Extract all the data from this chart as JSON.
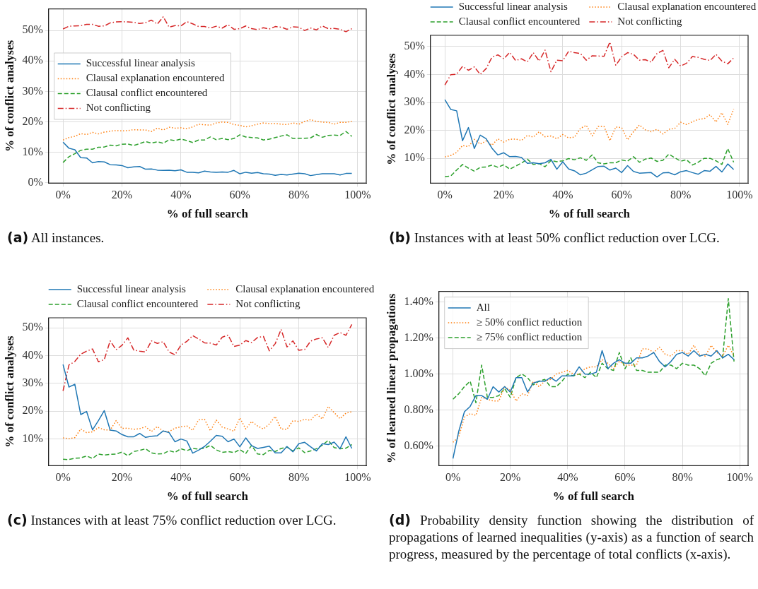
{
  "chart_data": [
    {
      "type": "line",
      "xlabel": "% of full search",
      "ylabel": "% of conflict analyses",
      "legend": "center left",
      "grid": true,
      "x": [
        0,
        2,
        4,
        6,
        8,
        10,
        12,
        14,
        16,
        18,
        20,
        22,
        24,
        26,
        28,
        30,
        32,
        34,
        36,
        38,
        40,
        42,
        44,
        46,
        48,
        50,
        52,
        54,
        56,
        58,
        60,
        62,
        64,
        66,
        68,
        70,
        72,
        74,
        76,
        78,
        80,
        82,
        84,
        86,
        88,
        90,
        92,
        94,
        96,
        98
      ],
      "xlim": [
        -4.9,
        102.9
      ],
      "ylim": [
        -0.2,
        57.1
      ],
      "xticks": [
        {
          "value": 0,
          "label": "0%"
        },
        {
          "value": 20,
          "label": "20%"
        },
        {
          "value": 40,
          "label": "40%"
        },
        {
          "value": 60,
          "label": "60%"
        },
        {
          "value": 80,
          "label": "80%"
        },
        {
          "value": 100,
          "label": "100%"
        }
      ],
      "yticks": [
        {
          "value": 0,
          "label": "0%"
        },
        {
          "value": 10,
          "label": "10%"
        },
        {
          "value": 20,
          "label": "20%"
        },
        {
          "value": 30,
          "label": "30%"
        },
        {
          "value": 40,
          "label": "40%"
        },
        {
          "value": 50,
          "label": "50%"
        }
      ],
      "series": [
        {
          "name": "Successful linear analysis",
          "color": "#1f77b4",
          "line_style": "solid",
          "values": [
            13.3,
            11.3,
            10.8,
            8.2,
            8.1,
            6.5,
            6.9,
            6.8,
            5.9,
            5.8,
            5.6,
            4.9,
            5.2,
            5.3,
            4.4,
            4.5,
            4.1,
            4.0,
            4.1,
            3.9,
            4.2,
            3.4,
            3.4,
            3.2,
            3.8,
            3.5,
            3.4,
            3.5,
            3.4,
            4.0,
            2.9,
            3.4,
            3.1,
            3.3,
            2.9,
            2.8,
            2.4,
            2.7,
            2.5,
            2.8,
            3.1,
            2.9,
            2.3,
            2.6,
            2.9,
            2.9,
            2.9,
            2.5,
            3.0,
            3.0
          ]
        },
        {
          "name": "Clausal explanation encountered",
          "color": "#ff7f0e",
          "line_style": "dotted",
          "values": [
            14.0,
            14.8,
            15.2,
            16.1,
            15.8,
            16.5,
            16.0,
            16.6,
            16.9,
            17.1,
            17.0,
            17.1,
            17.4,
            17.3,
            17.3,
            16.8,
            17.9,
            17.3,
            18.2,
            17.9,
            18.0,
            17.7,
            18.3,
            19.2,
            19.0,
            18.9,
            19.6,
            19.9,
            19.8,
            19.1,
            18.8,
            18.3,
            18.7,
            19.2,
            19.6,
            19.4,
            19.4,
            19.2,
            19.1,
            19.6,
            19.2,
            20.1,
            20.7,
            20.1,
            19.9,
            19.8,
            19.2,
            19.8,
            19.8,
            20.1
          ]
        },
        {
          "name": "Clausal conflict encountered",
          "color": "#2ca02c",
          "line_style": "dashed",
          "values": [
            6.6,
            8.5,
            9.5,
            10.6,
            11.0,
            11.0,
            11.6,
            11.7,
            12.3,
            12.1,
            12.6,
            12.7,
            12.2,
            12.8,
            13.5,
            13.0,
            13.4,
            12.9,
            14.1,
            13.8,
            14.3,
            13.8,
            13.2,
            14.0,
            14.0,
            15.0,
            14.1,
            14.5,
            14.1,
            14.5,
            15.7,
            15.0,
            14.8,
            14.7,
            14.0,
            14.3,
            14.8,
            15.3,
            15.7,
            14.5,
            14.6,
            14.6,
            14.7,
            15.8,
            14.9,
            15.5,
            15.6,
            15.5,
            16.8,
            15.2
          ]
        },
        {
          "name": "Not conflicting",
          "color": "#d62728",
          "line_style": "dashdot",
          "values": [
            50.5,
            51.4,
            51.5,
            51.6,
            52.0,
            52.0,
            51.4,
            51.5,
            52.5,
            52.8,
            52.9,
            52.8,
            52.7,
            52.3,
            52.6,
            53.4,
            52.1,
            54.5,
            51.1,
            51.6,
            51.5,
            52.9,
            52.2,
            51.3,
            51.3,
            50.8,
            51.4,
            50.8,
            51.9,
            50.4,
            50.6,
            51.5,
            50.6,
            50.3,
            50.9,
            50.5,
            51.3,
            51.1,
            50.4,
            51.2,
            51.1,
            50.0,
            50.8,
            50.2,
            51.5,
            50.6,
            50.7,
            50.4,
            49.6,
            50.6
          ]
        }
      ],
      "annotations": [
        "(a) All instances."
      ]
    },
    {
      "type": "line",
      "xlabel": "% of full search",
      "ylabel": "% of conflict analyses",
      "legend": "top",
      "grid": true,
      "x": [
        0,
        2,
        4,
        6,
        8,
        10,
        12,
        14,
        16,
        18,
        20,
        22,
        24,
        26,
        28,
        30,
        32,
        34,
        36,
        38,
        40,
        42,
        44,
        46,
        48,
        50,
        52,
        54,
        56,
        58,
        60,
        62,
        64,
        66,
        68,
        70,
        72,
        74,
        76,
        78,
        80,
        82,
        84,
        86,
        88,
        90,
        92,
        94,
        96,
        98
      ],
      "xlim": [
        -4.9,
        102.9
      ],
      "ylim": [
        1.1,
        54.0
      ],
      "xticks": [
        {
          "value": 0,
          "label": "0%"
        },
        {
          "value": 20,
          "label": "20%"
        },
        {
          "value": 40,
          "label": "40%"
        },
        {
          "value": 60,
          "label": "60%"
        },
        {
          "value": 80,
          "label": "80%"
        },
        {
          "value": 100,
          "label": "100%"
        }
      ],
      "yticks": [
        {
          "value": 10,
          "label": "10%"
        },
        {
          "value": 20,
          "label": "20%"
        },
        {
          "value": 30,
          "label": "30%"
        },
        {
          "value": 40,
          "label": "40%"
        },
        {
          "value": 50,
          "label": "50%"
        }
      ],
      "series": [
        {
          "name": "Successful linear analysis",
          "color": "#1f77b4",
          "line_style": "solid",
          "values": [
            31.0,
            27.5,
            27.0,
            16.3,
            21.0,
            13.5,
            18.3,
            17.0,
            13.6,
            11.2,
            12.0,
            10.6,
            10.7,
            10.3,
            8.2,
            8.4,
            8.1,
            8.4,
            9.6,
            6.1,
            8.8,
            6.2,
            5.5,
            4.1,
            4.7,
            5.9,
            7.1,
            7.2,
            5.8,
            6.5,
            4.9,
            7.4,
            5.3,
            4.7,
            4.8,
            4.9,
            3.3,
            4.8,
            4.9,
            4.1,
            5.2,
            5.6,
            4.9,
            4.3,
            5.6,
            5.4,
            7.1,
            5.1,
            8.0,
            6.0
          ]
        },
        {
          "name": "Clausal explanation encountered",
          "color": "#ff7f0e",
          "line_style": "dotted",
          "values": [
            10.5,
            11.0,
            12.1,
            14.6,
            14.2,
            16.8,
            15.1,
            16.2,
            14.7,
            17.0,
            15.8,
            16.8,
            16.9,
            16.4,
            18.2,
            17.6,
            19.5,
            17.7,
            18.0,
            17.0,
            18.5,
            17.3,
            17.6,
            20.7,
            21.8,
            18.0,
            21.4,
            21.4,
            16.3,
            21.2,
            21.0,
            16.6,
            19.5,
            21.9,
            20.2,
            19.5,
            20.4,
            18.7,
            20.4,
            20.7,
            22.9,
            22.1,
            23.1,
            23.9,
            24.2,
            25.6,
            23.0,
            26.3,
            22.1,
            27.6
          ]
        },
        {
          "name": "Clausal conflict encountered",
          "color": "#2ca02c",
          "line_style": "dashed",
          "values": [
            3.4,
            3.7,
            5.8,
            7.8,
            6.5,
            5.4,
            6.8,
            6.9,
            7.6,
            6.8,
            7.7,
            6.1,
            7.2,
            8.3,
            9.7,
            7.8,
            8.1,
            7.0,
            9.2,
            8.8,
            9.1,
            9.9,
            9.5,
            10.2,
            9.3,
            11.2,
            8.4,
            8.0,
            8.4,
            8.4,
            9.4,
            9.0,
            10.6,
            8.6,
            9.7,
            10.1,
            8.9,
            9.3,
            11.5,
            10.2,
            9.0,
            9.5,
            7.6,
            8.6,
            10.0,
            10.0,
            9.1,
            7.8,
            13.5,
            8.6
          ]
        },
        {
          "name": "Not conflicting",
          "color": "#d62728",
          "line_style": "dashdot",
          "values": [
            36.2,
            39.9,
            40.1,
            42.9,
            41.5,
            42.7,
            40.0,
            42.1,
            46.2,
            47.0,
            45.6,
            47.9,
            45.0,
            45.6,
            44.5,
            47.8,
            44.8,
            48.7,
            41.0,
            45.1,
            44.9,
            48.3,
            47.8,
            47.5,
            45.1,
            46.7,
            46.6,
            46.5,
            51.6,
            43.3,
            46.3,
            47.8,
            47.2,
            45.1,
            45.3,
            44.4,
            47.5,
            48.6,
            42.4,
            45.4,
            43.0,
            44.0,
            46.4,
            46.1,
            45.4,
            45.0,
            47.2,
            44.8,
            43.8,
            45.9
          ]
        }
      ],
      "annotations": [
        "(b) Instances with at least 50% conflict reduction over LCG."
      ]
    },
    {
      "type": "line",
      "xlabel": "% of full search",
      "ylabel": "% of conflict analyses",
      "legend": "top",
      "grid": true,
      "x": [
        0,
        2,
        4,
        6,
        8,
        10,
        12,
        14,
        16,
        18,
        20,
        22,
        24,
        26,
        28,
        30,
        32,
        34,
        36,
        38,
        40,
        42,
        44,
        46,
        48,
        50,
        52,
        54,
        56,
        58,
        60,
        62,
        64,
        66,
        68,
        70,
        72,
        74,
        76,
        78,
        80,
        82,
        84,
        86,
        88,
        90,
        92,
        94,
        96,
        98
      ],
      "xlim": [
        -4.9,
        102.9
      ],
      "ylim": [
        0.4,
        53.6
      ],
      "xticks": [
        {
          "value": 0,
          "label": "0%"
        },
        {
          "value": 20,
          "label": "20%"
        },
        {
          "value": 40,
          "label": "40%"
        },
        {
          "value": 60,
          "label": "60%"
        },
        {
          "value": 80,
          "label": "80%"
        },
        {
          "value": 100,
          "label": "100%"
        }
      ],
      "yticks": [
        {
          "value": 10,
          "label": "10%"
        },
        {
          "value": 20,
          "label": "20%"
        },
        {
          "value": 30,
          "label": "30%"
        },
        {
          "value": 40,
          "label": "40%"
        },
        {
          "value": 50,
          "label": "50%"
        }
      ],
      "series": [
        {
          "name": "Successful linear analysis",
          "color": "#1f77b4",
          "line_style": "solid",
          "values": [
            36.8,
            28.7,
            29.7,
            18.8,
            19.9,
            13.3,
            16.6,
            20.2,
            13.2,
            12.9,
            11.6,
            10.8,
            10.8,
            12.0,
            10.6,
            11.0,
            11.2,
            12.9,
            12.3,
            9.0,
            10.0,
            9.3,
            4.9,
            6.0,
            7.3,
            9.2,
            11.3,
            11.0,
            9.0,
            10.0,
            7.2,
            10.4,
            7.6,
            6.6,
            7.0,
            7.4,
            5.0,
            5.0,
            7.3,
            5.4,
            8.3,
            8.8,
            7.2,
            5.7,
            8.3,
            8.0,
            8.9,
            6.5,
            10.8,
            6.6
          ]
        },
        {
          "name": "Clausal explanation encountered",
          "color": "#ff7f0e",
          "line_style": "dotted",
          "values": [
            10.4,
            10.1,
            10.5,
            13.6,
            12.3,
            12.6,
            14.1,
            13.3,
            13.2,
            16.6,
            13.8,
            13.9,
            13.5,
            13.7,
            14.4,
            12.7,
            14.5,
            12.8,
            12.7,
            13.9,
            14.4,
            14.7,
            13.1,
            16.9,
            17.1,
            12.9,
            16.8,
            14.3,
            13.6,
            12.8,
            17.6,
            13.6,
            16.3,
            14.7,
            13.6,
            15.4,
            18.1,
            13.6,
            13.5,
            16.6,
            16.3,
            17.1,
            16.7,
            19.0,
            17.2,
            21.7,
            19.5,
            17.3,
            19.3,
            19.8
          ]
        },
        {
          "name": "Clausal conflict encountered",
          "color": "#2ca02c",
          "line_style": "dashed",
          "values": [
            2.7,
            2.6,
            3.1,
            3.2,
            3.9,
            3.0,
            4.6,
            4.2,
            4.5,
            4.6,
            5.3,
            4.0,
            5.5,
            5.9,
            6.5,
            5.0,
            4.6,
            4.7,
            5.8,
            5.2,
            6.5,
            5.8,
            6.6,
            6.4,
            6.7,
            7.7,
            6.1,
            5.2,
            5.5,
            5.1,
            6.2,
            4.8,
            7.7,
            4.6,
            4.4,
            5.9,
            5.5,
            6.6,
            7.1,
            5.7,
            6.8,
            5.1,
            5.7,
            6.5,
            7.8,
            9.5,
            6.9,
            6.5,
            6.7,
            8.0
          ]
        },
        {
          "name": "Not conflicting",
          "color": "#d62728",
          "line_style": "dashdot",
          "values": [
            27.3,
            36.6,
            37.9,
            40.5,
            41.6,
            42.4,
            37.8,
            38.6,
            45.3,
            42.1,
            43.7,
            46.4,
            42.0,
            41.6,
            41.3,
            45.3,
            44.4,
            45.0,
            41.3,
            40.3,
            43.8,
            45.1,
            47.2,
            46.0,
            44.6,
            44.5,
            43.8,
            46.6,
            47.4,
            43.3,
            43.8,
            45.4,
            44.7,
            46.5,
            46.9,
            41.7,
            44.3,
            49.4,
            43.1,
            45.3,
            41.9,
            42.2,
            45.2,
            46.0,
            46.4,
            42.9,
            47.3,
            48.3,
            47.3,
            51.2
          ]
        }
      ],
      "annotations": [
        "(c) Instances with at least 75% conflict reduction over LCG."
      ]
    },
    {
      "type": "line",
      "xlabel": "% of full search",
      "ylabel": "% of learned linear propagations",
      "legend": "top left",
      "grid": true,
      "x": [
        0,
        2,
        4,
        6,
        8,
        10,
        12,
        14,
        16,
        18,
        20,
        22,
        24,
        26,
        28,
        30,
        32,
        34,
        36,
        38,
        40,
        42,
        44,
        46,
        48,
        50,
        52,
        54,
        56,
        58,
        60,
        62,
        64,
        66,
        68,
        70,
        72,
        74,
        76,
        78,
        80,
        82,
        84,
        86,
        88,
        90,
        92,
        94,
        96,
        98
      ],
      "xlim": [
        -4.9,
        102.9
      ],
      "ylim": [
        0.49,
        1.46
      ],
      "xticks": [
        {
          "value": 0,
          "label": "0%"
        },
        {
          "value": 20,
          "label": "20%"
        },
        {
          "value": 40,
          "label": "40%"
        },
        {
          "value": 60,
          "label": "60%"
        },
        {
          "value": 80,
          "label": "80%"
        },
        {
          "value": 100,
          "label": "100%"
        }
      ],
      "yticks": [
        {
          "value": 0.6,
          "label": "0.60%"
        },
        {
          "value": 0.8,
          "label": "0.80%"
        },
        {
          "value": 1.0,
          "label": "1.00%"
        },
        {
          "value": 1.2,
          "label": "1.20%"
        },
        {
          "value": 1.4,
          "label": "1.40%"
        }
      ],
      "series": [
        {
          "name": "All",
          "color": "#1f77b4",
          "line_style": "solid",
          "values": [
            0.53,
            0.68,
            0.79,
            0.82,
            0.88,
            0.88,
            0.86,
            0.93,
            0.9,
            0.93,
            0.9,
            0.98,
            0.98,
            0.9,
            0.95,
            0.96,
            0.96,
            0.98,
            0.96,
            0.99,
            0.99,
            0.99,
            1.04,
            1.0,
            1.0,
            1.01,
            1.13,
            1.03,
            1.06,
            1.08,
            1.06,
            1.06,
            1.09,
            1.09,
            1.1,
            1.12,
            1.07,
            1.04,
            1.07,
            1.11,
            1.12,
            1.1,
            1.13,
            1.1,
            1.11,
            1.1,
            1.13,
            1.09,
            1.11,
            1.08
          ]
        },
        {
          "name": "≥ 50% conflict reduction",
          "color": "#ff7f0e",
          "line_style": "dotted",
          "values": [
            0.62,
            0.65,
            0.76,
            0.78,
            0.77,
            0.87,
            0.86,
            0.85,
            0.85,
            0.93,
            0.91,
            0.85,
            0.89,
            0.88,
            0.96,
            0.93,
            0.96,
            0.97,
            1.0,
            1.01,
            1.02,
            1.0,
            1.0,
            1.03,
            1.04,
            1.04,
            1.08,
            1.06,
            1.03,
            1.07,
            1.05,
            1.05,
            1.05,
            1.14,
            1.14,
            1.12,
            1.15,
            1.11,
            1.1,
            1.13,
            1.13,
            1.11,
            1.16,
            1.11,
            1.1,
            1.16,
            1.12,
            1.1,
            1.16,
            1.1
          ]
        },
        {
          "name": "≥ 75% conflict reduction",
          "color": "#2ca02c",
          "line_style": "dashed",
          "values": [
            0.86,
            0.89,
            0.93,
            0.96,
            0.84,
            1.05,
            0.87,
            0.87,
            0.88,
            0.92,
            0.87,
            0.98,
            1.0,
            0.98,
            0.94,
            0.96,
            0.97,
            0.93,
            0.93,
            0.96,
            1.0,
            0.99,
            1.0,
            0.98,
            1.01,
            0.98,
            1.06,
            1.03,
            1.02,
            1.12,
            1.03,
            1.09,
            1.02,
            1.02,
            1.01,
            1.01,
            1.01,
            1.05,
            1.05,
            1.03,
            1.06,
            1.05,
            1.05,
            1.03,
            0.99,
            1.06,
            1.08,
            1.09,
            1.42,
            1.07
          ]
        }
      ],
      "annotations": [
        "(d) Probability density function showing the distribution of propagations of learned inequalities (y-axis) as a function of search progress, measured by the percentage of total conflicts (x-axis)."
      ]
    }
  ]
}
